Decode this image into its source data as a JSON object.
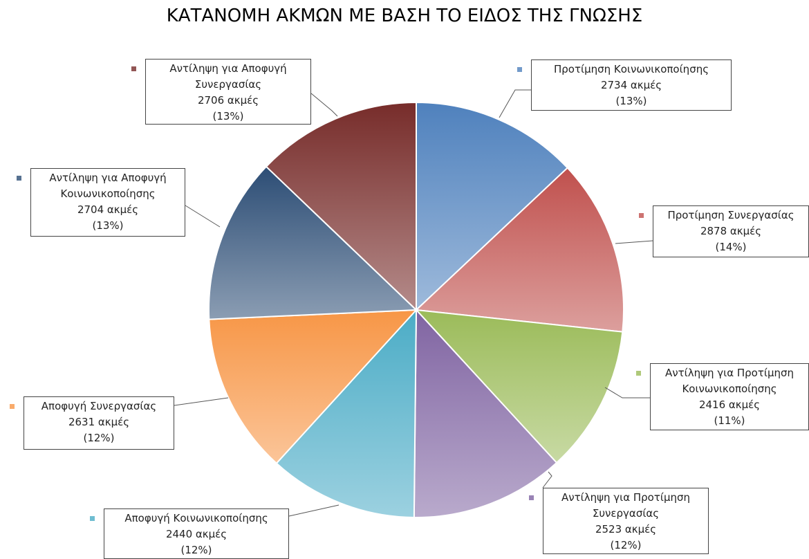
{
  "chart_data": {
    "type": "pie",
    "title": "ΚΑΤΑΝΟΜΗ ΑΚΜΩΝ ΜΕ ΒΑΣΗ ΤΟ ΕΙΔΟΣ ΤΗΣ ΓΝΩΣΗΣ",
    "categories": [
      "Προτίμηση Κοινωνικοποίησης",
      "Προτίμηση Συνεργασίας",
      "Αντίληψη για Προτίμηση Κοινωνικοποίησης",
      "Αντίληψη για Προτίμηση Συνεργασίας",
      "Αποφυγή Κοινωνικοποίησης",
      "Αποφυγή Συνεργασίας",
      "Αντίληψη για Αποφυγή Κοινωνικοποίησης",
      "Αντίληψη για Αποφυγή Συνεργασίας"
    ],
    "values": [
      2734,
      2878,
      2416,
      2523,
      2440,
      2631,
      2704,
      2706
    ],
    "value_labels": [
      "2734 ακμές",
      "2878 ακμές",
      "2416 ακμές",
      "2523 ακμές",
      "2440 ακμές",
      "2631 ακμές",
      "2704 ακμές",
      "2706 ακμές"
    ],
    "percents": [
      13,
      14,
      11,
      12,
      12,
      12,
      13,
      13
    ],
    "percent_labels": [
      "(13%)",
      "(14%)",
      "(11%)",
      "(12%)",
      "(12%)",
      "(12%)",
      "(13%)",
      "(13%)"
    ],
    "colors": [
      "#4f81bd",
      "#c0504d",
      "#9bbb59",
      "#8064a2",
      "#4bacc6",
      "#f79646",
      "#2c4d75",
      "#772c2a"
    ]
  }
}
